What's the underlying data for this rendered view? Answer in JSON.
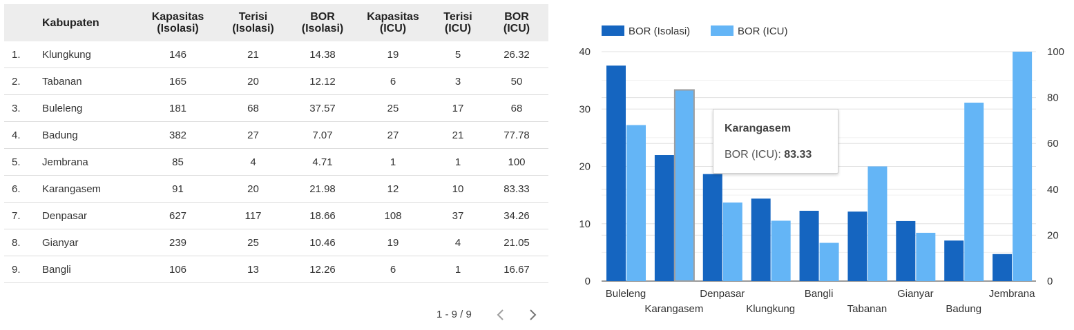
{
  "table": {
    "columns": [
      "",
      "Kabupaten",
      "Kapasitas\n(Isolasi)",
      "Terisi\n(Isolasi)",
      "BOR\n(Isolasi)",
      "Kapasitas\n(ICU)",
      "Terisi\n(ICU)",
      "BOR\n(ICU)"
    ],
    "rows": [
      [
        "1.",
        "Klungkung",
        "146",
        "21",
        "14.38",
        "19",
        "5",
        "26.32"
      ],
      [
        "2.",
        "Tabanan",
        "165",
        "20",
        "12.12",
        "6",
        "3",
        "50"
      ],
      [
        "3.",
        "Buleleng",
        "181",
        "68",
        "37.57",
        "25",
        "17",
        "68"
      ],
      [
        "4.",
        "Badung",
        "382",
        "27",
        "7.07",
        "27",
        "21",
        "77.78"
      ],
      [
        "5.",
        "Jembrana",
        "85",
        "4",
        "4.71",
        "1",
        "1",
        "100"
      ],
      [
        "6.",
        "Karangasem",
        "91",
        "20",
        "21.98",
        "12",
        "10",
        "83.33"
      ],
      [
        "7.",
        "Denpasar",
        "627",
        "117",
        "18.66",
        "108",
        "37",
        "34.26"
      ],
      [
        "8.",
        "Gianyar",
        "239",
        "25",
        "10.46",
        "19",
        "4",
        "21.05"
      ],
      [
        "9.",
        "Bangli",
        "106",
        "13",
        "12.26",
        "6",
        "1",
        "16.67"
      ]
    ],
    "pagination": {
      "label": "1 - 9 / 9"
    }
  },
  "tooltip": {
    "title": "Karangasem",
    "series": "BOR (ICU):",
    "value": "83.33"
  },
  "chart_data": {
    "type": "bar",
    "categories": [
      "Buleleng",
      "Karangasem",
      "Denpasar",
      "Klungkung",
      "Bangli",
      "Tabanan",
      "Gianyar",
      "Badung",
      "Jembrana"
    ],
    "series": [
      {
        "name": "BOR (Isolasi)",
        "axis": "left",
        "color": "#1565c0",
        "values": [
          37.57,
          21.98,
          18.66,
          14.38,
          12.26,
          12.12,
          10.46,
          7.07,
          4.71
        ]
      },
      {
        "name": "BOR (ICU)",
        "axis": "right",
        "color": "#64b5f6",
        "values": [
          68,
          83.33,
          34.26,
          26.32,
          16.67,
          50,
          21.05,
          77.78,
          100
        ]
      }
    ],
    "y_left": {
      "range": [
        0,
        40
      ],
      "ticks": [
        0,
        10,
        20,
        30,
        40
      ]
    },
    "y_right": {
      "range": [
        0,
        100
      ],
      "ticks": [
        0,
        20,
        40,
        60,
        80,
        100
      ]
    },
    "legend": "top-left",
    "grid": true,
    "highlighted": {
      "category": "Karangasem",
      "series": "BOR (ICU)"
    }
  }
}
